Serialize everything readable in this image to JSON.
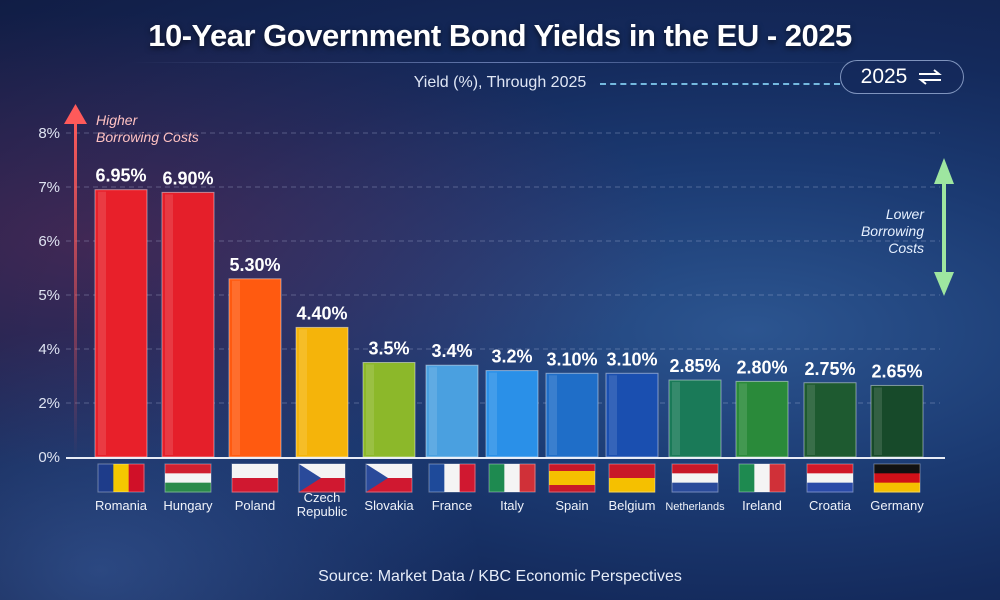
{
  "title": "10-Year Government Bond Yields in the EU - 2025",
  "subtitle": "Yield (%), Through 2025",
  "year_badge": {
    "label": "2025",
    "icon": "swap-arrows-icon"
  },
  "annotations": {
    "higher": [
      "Higher",
      "Borrowing Costs"
    ],
    "lower": [
      "Lower",
      "Borrowing",
      "Costs"
    ],
    "higher_color": "#ff5a5a",
    "lower_color": "#9ee6a0"
  },
  "source": "Source: Market Data / KBC Economic Perspectives",
  "chart_data": {
    "type": "bar",
    "title": "10-Year Government Bond Yields in the EU - 2025",
    "subtitle": "Yield (%), Through 2025",
    "ylim": [
      0,
      8
    ],
    "yticks": [
      {
        "value": 0,
        "label": "0%"
      },
      {
        "value": 2,
        "label": "2%"
      },
      {
        "value": 4,
        "label": "4%"
      },
      {
        "value": 5,
        "label": "5%"
      },
      {
        "value": 6,
        "label": "6%"
      },
      {
        "value": 7,
        "label": "7%"
      },
      {
        "value": 8,
        "label": "8%"
      }
    ],
    "grid": true,
    "categories": [
      "Romania",
      "Hungary",
      "Poland",
      "Czech Republic",
      "Slovakia",
      "France",
      "Italy",
      "Spain",
      "Belgium",
      "Netherlands",
      "Ireland",
      "Croatia",
      "Germany"
    ],
    "values": [
      6.95,
      6.9,
      5.3,
      4.4,
      3.5,
      3.4,
      3.2,
      3.1,
      3.1,
      2.85,
      2.8,
      2.75,
      2.65
    ],
    "data_labels": [
      "6.95%",
      "6.90%",
      "5.30%",
      "4.40%",
      "3.5%",
      "3.4%",
      "3.2%",
      "3.10%",
      "3.10%",
      "2.85%",
      "2.80%",
      "2.75%",
      "2.65%"
    ],
    "colors": [
      "#e8202a",
      "#e51f2a",
      "#ff5a10",
      "#f5b40a",
      "#8cb82a",
      "#4aa0e0",
      "#2a90e8",
      "#1f6ec8",
      "#1a4fb0",
      "#1a7a58",
      "#2a8a3a",
      "#1e5a30",
      "#174a2a"
    ],
    "flags": [
      {
        "dir": "v",
        "stripes": [
          "#1e3c8a",
          "#f5c800",
          "#d01028"
        ]
      },
      {
        "dir": "h",
        "stripes": [
          "#d02030",
          "#f4f4f4",
          "#2a8a4a"
        ]
      },
      {
        "dir": "h",
        "stripes": [
          "#f4f4f4",
          "#d01830"
        ]
      },
      {
        "dir": "h",
        "stripes": [
          "#f4f4f4",
          "#d01830"
        ],
        "triangle": "#2a4a9a"
      },
      {
        "dir": "h",
        "stripes": [
          "#f4f4f4",
          "#d01830"
        ],
        "triangle": "#2a4a9a"
      },
      {
        "dir": "v",
        "stripes": [
          "#1e4a9a",
          "#f4f4f4",
          "#d01830"
        ]
      },
      {
        "dir": "v",
        "stripes": [
          "#1e8a50",
          "#f4f4f4",
          "#d03038"
        ]
      },
      {
        "dir": "h",
        "stripes": [
          "#c81828",
          "#f5c000",
          "#f5c000",
          "#c81828"
        ]
      },
      {
        "dir": "h",
        "stripes": [
          "#c81828",
          "#f5c000"
        ]
      },
      {
        "dir": "h",
        "stripes": [
          "#c81828",
          "#f4f4f4",
          "#2a4a9a"
        ]
      },
      {
        "dir": "v",
        "stripes": [
          "#1e8a50",
          "#f4f4f4",
          "#d03038"
        ]
      },
      {
        "dir": "h",
        "stripes": [
          "#d01828",
          "#f4f4f4",
          "#2a4aa8"
        ]
      },
      {
        "dir": "h",
        "stripes": [
          "#111111",
          "#d01018",
          "#f5c000"
        ]
      }
    ]
  }
}
